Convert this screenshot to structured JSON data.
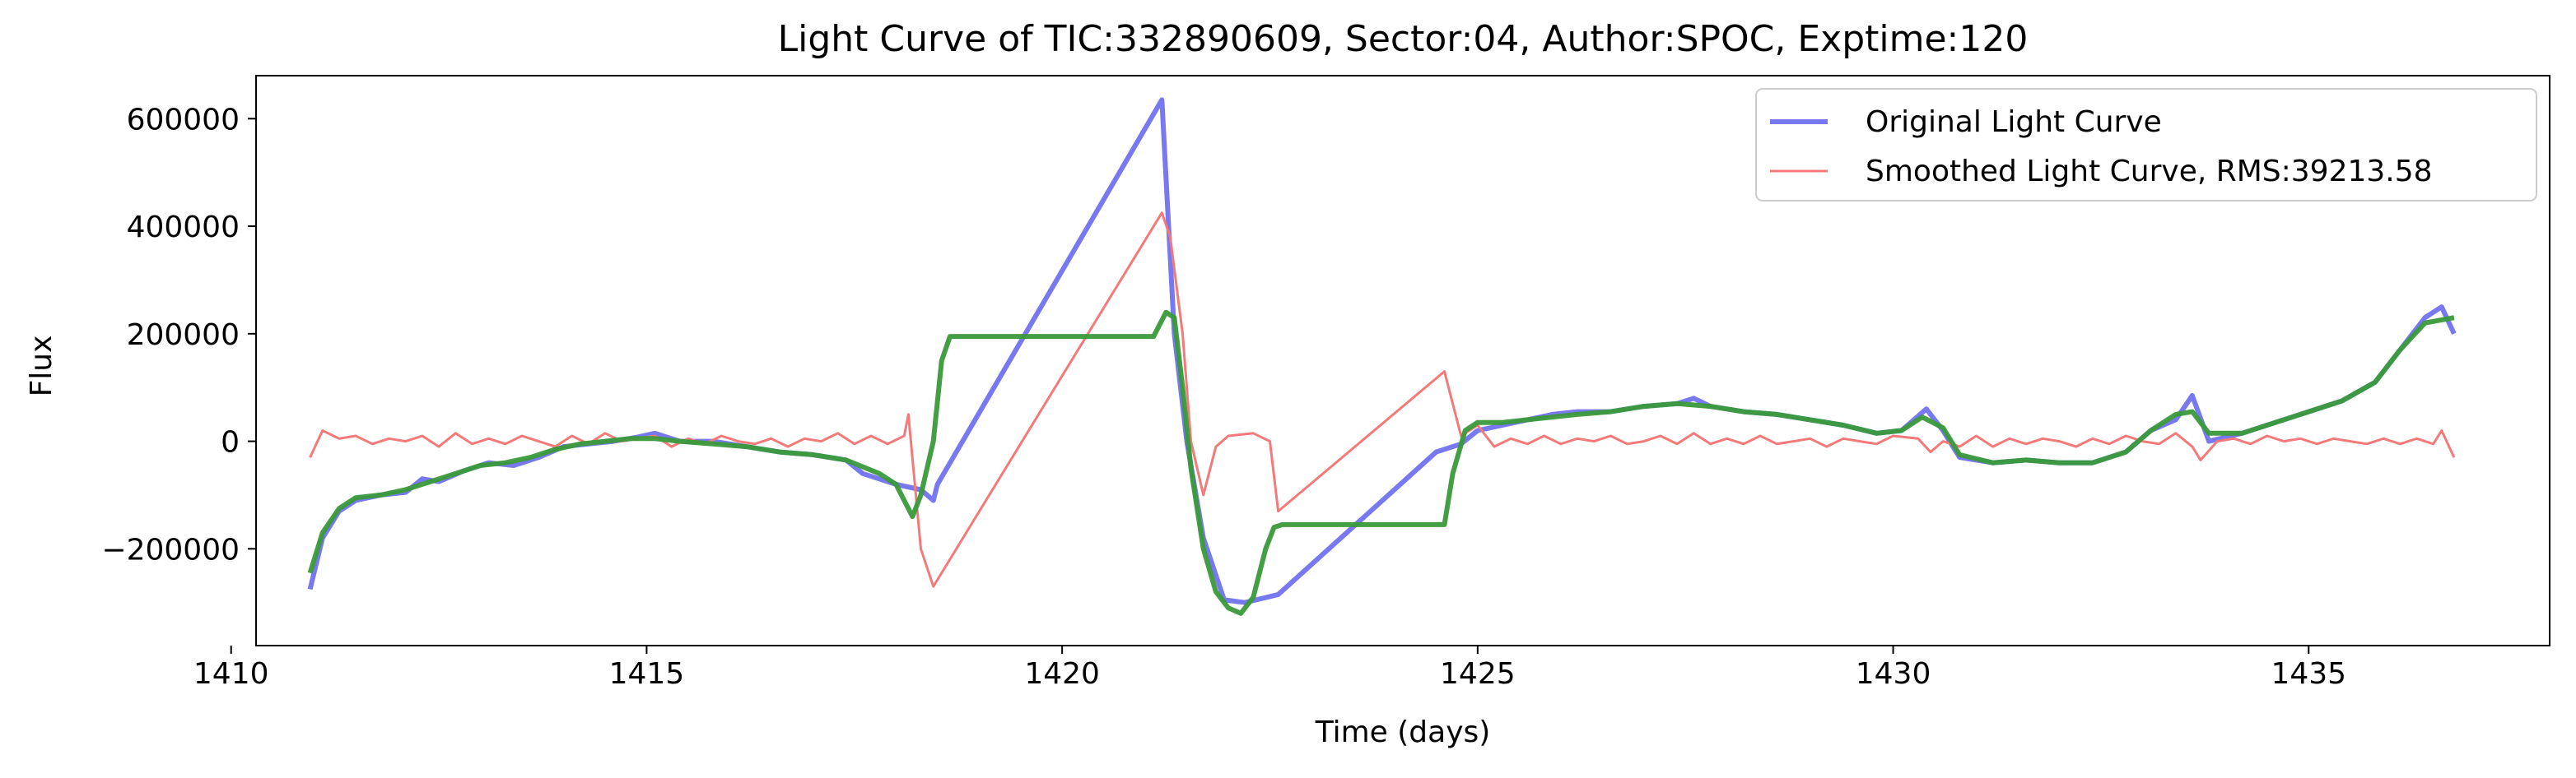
{
  "chart_data": {
    "type": "line",
    "title": "Light Curve of TIC:332890609, Sector:04, Author:SPOC, Exptime:120",
    "xlabel": "Time (days)",
    "ylabel": "Flux",
    "xlim": [
      1410.3,
      1437.9
    ],
    "ylim": [
      -380000,
      680000
    ],
    "xticks": [
      1410,
      1415,
      1420,
      1425,
      1430,
      1435
    ],
    "xtick_labels": [
      "1410",
      "1415",
      "1420",
      "1425",
      "1430",
      "1435"
    ],
    "yticks": [
      -200000,
      0,
      200000,
      400000,
      600000
    ],
    "ytick_labels": [
      "−200000",
      "0",
      "200000",
      "400000",
      "600000"
    ],
    "grid": false,
    "legend_position": "top-right",
    "series": [
      {
        "name": "Original Light Curve",
        "color": "#7878f0",
        "points": [
          [
            1410.95,
            -275000
          ],
          [
            1411.1,
            -180000
          ],
          [
            1411.3,
            -130000
          ],
          [
            1411.5,
            -110000
          ],
          [
            1411.8,
            -100000
          ],
          [
            1412.1,
            -95000
          ],
          [
            1412.3,
            -70000
          ],
          [
            1412.5,
            -75000
          ],
          [
            1412.8,
            -55000
          ],
          [
            1413.1,
            -40000
          ],
          [
            1413.4,
            -45000
          ],
          [
            1413.7,
            -30000
          ],
          [
            1414.0,
            -10000
          ],
          [
            1414.3,
            -5000
          ],
          [
            1414.6,
            0
          ],
          [
            1414.9,
            8000
          ],
          [
            1415.1,
            15000
          ],
          [
            1415.4,
            0
          ],
          [
            1415.8,
            0
          ],
          [
            1416.2,
            -10000
          ],
          [
            1416.6,
            -20000
          ],
          [
            1417.0,
            -25000
          ],
          [
            1417.4,
            -35000
          ],
          [
            1417.6,
            -60000
          ],
          [
            1418.0,
            -80000
          ],
          [
            1418.3,
            -90000
          ],
          [
            1418.45,
            -110000
          ],
          [
            1418.5,
            -80000
          ],
          [
            1421.2,
            635000
          ],
          [
            1421.35,
            200000
          ],
          [
            1421.5,
            0
          ],
          [
            1421.7,
            -180000
          ],
          [
            1421.95,
            -295000
          ],
          [
            1422.2,
            -300000
          ],
          [
            1422.6,
            -285000
          ],
          [
            1424.5,
            -20000
          ],
          [
            1424.8,
            -5000
          ],
          [
            1425.0,
            20000
          ],
          [
            1425.3,
            30000
          ],
          [
            1425.6,
            40000
          ],
          [
            1425.9,
            50000
          ],
          [
            1426.2,
            55000
          ],
          [
            1426.6,
            55000
          ],
          [
            1427.0,
            65000
          ],
          [
            1427.4,
            70000
          ],
          [
            1427.6,
            80000
          ],
          [
            1427.8,
            65000
          ],
          [
            1428.2,
            55000
          ],
          [
            1428.6,
            50000
          ],
          [
            1429.0,
            40000
          ],
          [
            1429.4,
            30000
          ],
          [
            1429.8,
            15000
          ],
          [
            1430.1,
            20000
          ],
          [
            1430.4,
            60000
          ],
          [
            1430.6,
            20000
          ],
          [
            1430.8,
            -30000
          ],
          [
            1431.2,
            -40000
          ],
          [
            1431.6,
            -35000
          ],
          [
            1432.0,
            -40000
          ],
          [
            1432.4,
            -40000
          ],
          [
            1432.8,
            -20000
          ],
          [
            1433.1,
            20000
          ],
          [
            1433.4,
            40000
          ],
          [
            1433.6,
            85000
          ],
          [
            1433.8,
            0
          ],
          [
            1434.2,
            15000
          ],
          [
            1434.6,
            35000
          ],
          [
            1435.0,
            55000
          ],
          [
            1435.4,
            75000
          ],
          [
            1435.8,
            110000
          ],
          [
            1436.1,
            170000
          ],
          [
            1436.4,
            230000
          ],
          [
            1436.6,
            250000
          ],
          [
            1436.75,
            200000
          ]
        ]
      },
      {
        "name": "Smoothed Light Curve, RMS:39213.58",
        "color": "#f47a7a",
        "points": [
          [
            1410.95,
            -30000
          ],
          [
            1411.1,
            20000
          ],
          [
            1411.3,
            5000
          ],
          [
            1411.5,
            10000
          ],
          [
            1411.7,
            -5000
          ],
          [
            1411.9,
            5000
          ],
          [
            1412.1,
            0
          ],
          [
            1412.3,
            10000
          ],
          [
            1412.5,
            -10000
          ],
          [
            1412.7,
            15000
          ],
          [
            1412.9,
            -5000
          ],
          [
            1413.1,
            5000
          ],
          [
            1413.3,
            -5000
          ],
          [
            1413.5,
            10000
          ],
          [
            1413.7,
            0
          ],
          [
            1413.9,
            -10000
          ],
          [
            1414.1,
            10000
          ],
          [
            1414.3,
            -5000
          ],
          [
            1414.5,
            15000
          ],
          [
            1414.7,
            0
          ],
          [
            1414.9,
            5000
          ],
          [
            1415.1,
            10000
          ],
          [
            1415.3,
            -10000
          ],
          [
            1415.5,
            5000
          ],
          [
            1415.7,
            -5000
          ],
          [
            1415.9,
            10000
          ],
          [
            1416.1,
            0
          ],
          [
            1416.3,
            -5000
          ],
          [
            1416.5,
            5000
          ],
          [
            1416.7,
            -10000
          ],
          [
            1416.9,
            5000
          ],
          [
            1417.1,
            0
          ],
          [
            1417.3,
            15000
          ],
          [
            1417.5,
            -5000
          ],
          [
            1417.7,
            10000
          ],
          [
            1417.9,
            -5000
          ],
          [
            1418.1,
            10000
          ],
          [
            1418.15,
            50000
          ],
          [
            1418.3,
            -200000
          ],
          [
            1418.45,
            -270000
          ],
          [
            1421.2,
            425000
          ],
          [
            1421.3,
            380000
          ],
          [
            1421.45,
            200000
          ],
          [
            1421.55,
            0
          ],
          [
            1421.7,
            -100000
          ],
          [
            1421.85,
            -10000
          ],
          [
            1422.0,
            10000
          ],
          [
            1422.3,
            15000
          ],
          [
            1422.5,
            0
          ],
          [
            1422.6,
            -130000
          ],
          [
            1424.6,
            130000
          ],
          [
            1424.8,
            10000
          ],
          [
            1425.0,
            30000
          ],
          [
            1425.2,
            -10000
          ],
          [
            1425.4,
            5000
          ],
          [
            1425.6,
            -5000
          ],
          [
            1425.8,
            10000
          ],
          [
            1426.0,
            -5000
          ],
          [
            1426.2,
            5000
          ],
          [
            1426.4,
            0
          ],
          [
            1426.6,
            10000
          ],
          [
            1426.8,
            -5000
          ],
          [
            1427.0,
            0
          ],
          [
            1427.2,
            10000
          ],
          [
            1427.4,
            -5000
          ],
          [
            1427.6,
            15000
          ],
          [
            1427.8,
            -5000
          ],
          [
            1428.0,
            5000
          ],
          [
            1428.2,
            -5000
          ],
          [
            1428.4,
            10000
          ],
          [
            1428.6,
            -5000
          ],
          [
            1428.8,
            0
          ],
          [
            1429.0,
            5000
          ],
          [
            1429.2,
            -10000
          ],
          [
            1429.4,
            5000
          ],
          [
            1429.6,
            0
          ],
          [
            1429.8,
            -5000
          ],
          [
            1430.0,
            10000
          ],
          [
            1430.3,
            5000
          ],
          [
            1430.45,
            -20000
          ],
          [
            1430.6,
            0
          ],
          [
            1430.8,
            -10000
          ],
          [
            1431.0,
            10000
          ],
          [
            1431.2,
            -10000
          ],
          [
            1431.4,
            5000
          ],
          [
            1431.6,
            -5000
          ],
          [
            1431.8,
            5000
          ],
          [
            1432.0,
            0
          ],
          [
            1432.2,
            -10000
          ],
          [
            1432.4,
            5000
          ],
          [
            1432.6,
            -5000
          ],
          [
            1432.8,
            10000
          ],
          [
            1433.0,
            0
          ],
          [
            1433.2,
            -5000
          ],
          [
            1433.4,
            15000
          ],
          [
            1433.6,
            -10000
          ],
          [
            1433.7,
            -35000
          ],
          [
            1433.9,
            0
          ],
          [
            1434.1,
            5000
          ],
          [
            1434.3,
            -5000
          ],
          [
            1434.5,
            10000
          ],
          [
            1434.7,
            0
          ],
          [
            1434.9,
            5000
          ],
          [
            1435.1,
            -5000
          ],
          [
            1435.3,
            5000
          ],
          [
            1435.5,
            0
          ],
          [
            1435.7,
            -5000
          ],
          [
            1435.9,
            5000
          ],
          [
            1436.1,
            -5000
          ],
          [
            1436.3,
            5000
          ],
          [
            1436.5,
            -5000
          ],
          [
            1436.6,
            20000
          ],
          [
            1436.75,
            -30000
          ]
        ]
      },
      {
        "name": "",
        "color": "#3a9a3a",
        "points": [
          [
            1410.95,
            -245000
          ],
          [
            1411.1,
            -170000
          ],
          [
            1411.3,
            -125000
          ],
          [
            1411.5,
            -105000
          ],
          [
            1411.8,
            -100000
          ],
          [
            1412.1,
            -90000
          ],
          [
            1412.4,
            -75000
          ],
          [
            1412.7,
            -60000
          ],
          [
            1413.0,
            -45000
          ],
          [
            1413.3,
            -40000
          ],
          [
            1413.6,
            -30000
          ],
          [
            1413.9,
            -15000
          ],
          [
            1414.2,
            -5000
          ],
          [
            1414.5,
            0
          ],
          [
            1414.8,
            5000
          ],
          [
            1415.1,
            5000
          ],
          [
            1415.4,
            0
          ],
          [
            1415.8,
            -5000
          ],
          [
            1416.2,
            -10000
          ],
          [
            1416.6,
            -20000
          ],
          [
            1417.0,
            -25000
          ],
          [
            1417.4,
            -35000
          ],
          [
            1417.8,
            -60000
          ],
          [
            1418.0,
            -80000
          ],
          [
            1418.1,
            -110000
          ],
          [
            1418.2,
            -140000
          ],
          [
            1418.3,
            -100000
          ],
          [
            1418.45,
            0
          ],
          [
            1418.55,
            150000
          ],
          [
            1418.65,
            195000
          ],
          [
            1421.1,
            195000
          ],
          [
            1421.25,
            240000
          ],
          [
            1421.35,
            230000
          ],
          [
            1421.45,
            100000
          ],
          [
            1421.55,
            -50000
          ],
          [
            1421.7,
            -200000
          ],
          [
            1421.85,
            -280000
          ],
          [
            1422.0,
            -310000
          ],
          [
            1422.15,
            -320000
          ],
          [
            1422.3,
            -290000
          ],
          [
            1422.45,
            -200000
          ],
          [
            1422.55,
            -160000
          ],
          [
            1422.65,
            -155000
          ],
          [
            1424.6,
            -155000
          ],
          [
            1424.7,
            -60000
          ],
          [
            1424.85,
            20000
          ],
          [
            1425.0,
            35000
          ],
          [
            1425.3,
            35000
          ],
          [
            1425.6,
            40000
          ],
          [
            1425.9,
            45000
          ],
          [
            1426.2,
            50000
          ],
          [
            1426.6,
            55000
          ],
          [
            1427.0,
            65000
          ],
          [
            1427.4,
            70000
          ],
          [
            1427.8,
            65000
          ],
          [
            1428.2,
            55000
          ],
          [
            1428.6,
            50000
          ],
          [
            1429.0,
            40000
          ],
          [
            1429.4,
            30000
          ],
          [
            1429.8,
            15000
          ],
          [
            1430.1,
            20000
          ],
          [
            1430.35,
            45000
          ],
          [
            1430.6,
            25000
          ],
          [
            1430.8,
            -25000
          ],
          [
            1431.2,
            -40000
          ],
          [
            1431.6,
            -35000
          ],
          [
            1432.0,
            -40000
          ],
          [
            1432.4,
            -40000
          ],
          [
            1432.8,
            -20000
          ],
          [
            1433.1,
            20000
          ],
          [
            1433.4,
            50000
          ],
          [
            1433.6,
            55000
          ],
          [
            1433.8,
            15000
          ],
          [
            1434.2,
            15000
          ],
          [
            1434.6,
            35000
          ],
          [
            1435.0,
            55000
          ],
          [
            1435.4,
            75000
          ],
          [
            1435.8,
            110000
          ],
          [
            1436.1,
            170000
          ],
          [
            1436.4,
            220000
          ],
          [
            1436.75,
            230000
          ]
        ]
      }
    ]
  }
}
